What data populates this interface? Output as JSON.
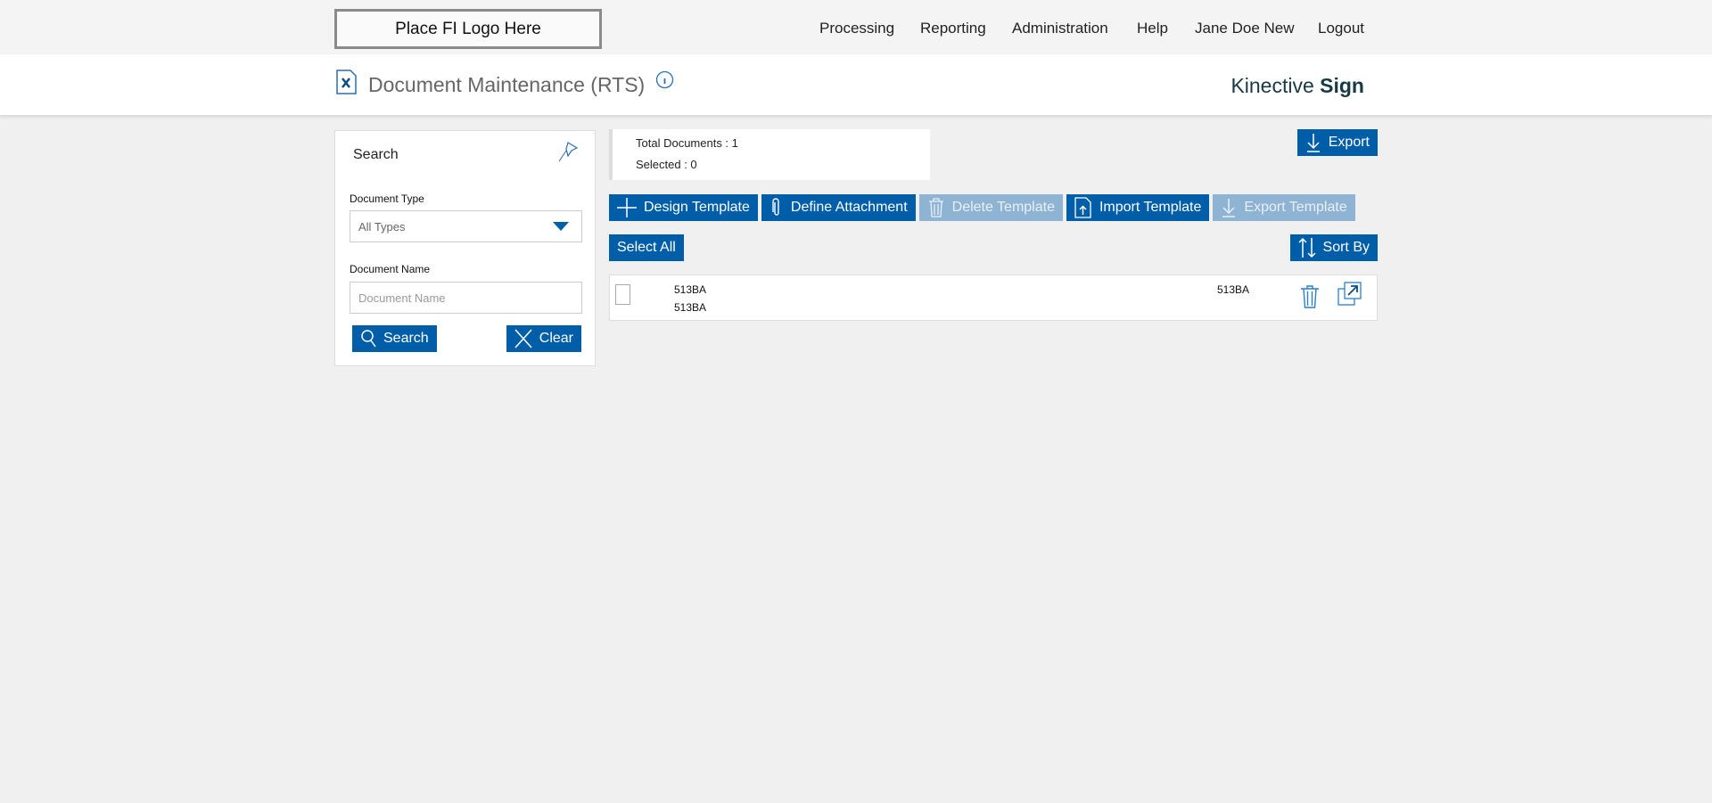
{
  "topbar": {
    "logo_text": "Place FI Logo Here",
    "nav": [
      "Processing",
      "Reporting",
      "Administration",
      "Help",
      "Jane Doe New",
      "Logout"
    ]
  },
  "header": {
    "title": "Document Maintenance (RTS)",
    "brand_light": "Kinective ",
    "brand_bold": "Sign"
  },
  "search": {
    "title": "Search",
    "doc_type_label": "Document Type",
    "doc_type_value": "All Types",
    "doc_name_label": "Document Name",
    "doc_name_placeholder": "Document Name",
    "search_button": "Search",
    "clear_button": "Clear"
  },
  "stats": {
    "total": "Total Documents : 1",
    "selected": "Selected : 0"
  },
  "toolbar": {
    "export": "Export",
    "design_template": "Design Template",
    "define_attachment": "Define Attachment",
    "delete_template": "Delete Template",
    "import_template": "Import Template",
    "export_template": "Export Template",
    "select_all": "Select All",
    "sort_by": "Sort By"
  },
  "rows": [
    {
      "name": "513BA",
      "description": "513BA",
      "code": "513BA"
    }
  ],
  "colors": {
    "primary": "#005ea8",
    "disabled": "#8fb4d3"
  }
}
